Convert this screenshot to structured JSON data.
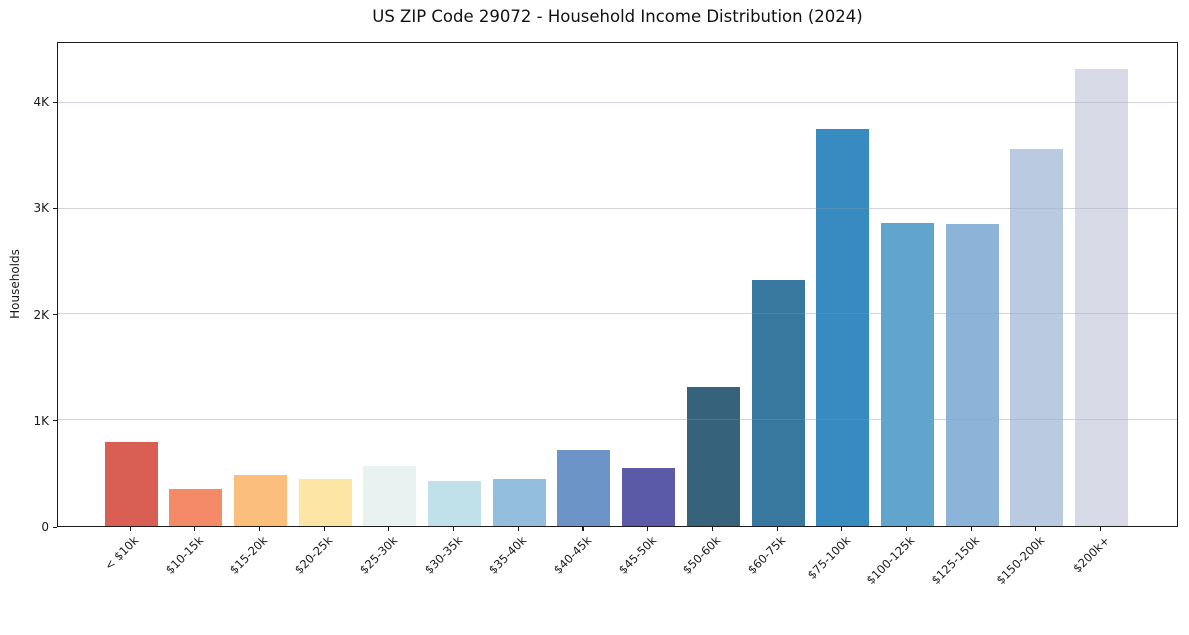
{
  "figure": {
    "title": "US ZIP Code 29072 - Household Income Distribution (2024)"
  },
  "chart_data": {
    "type": "bar",
    "title": "US ZIP Code 29072 - Household Income Distribution (2024)",
    "xlabel": "",
    "ylabel": "Households",
    "categories": [
      "< $10k",
      "$10-15k",
      "$15-20k",
      "$20-25k",
      "$25-30k",
      "$30-35k",
      "$35-40k",
      "$40-45k",
      "$45-50k",
      "$50-60k",
      "$60-75k",
      "$75-100k",
      "$100-125k",
      "$125-150k",
      "$150-200k",
      "$200k+"
    ],
    "values": [
      790,
      350,
      480,
      440,
      570,
      430,
      440,
      720,
      545,
      1310,
      2330,
      3750,
      2865,
      2855,
      3565,
      4325
    ],
    "bar_colors": [
      "#d95f55",
      "#f58a68",
      "#fcbe7d",
      "#fde5a5",
      "#e7f2f1",
      "#c0e0ea",
      "#94bedd",
      "#6c94c6",
      "#5a5aa8",
      "#36627b",
      "#38789f",
      "#378bc0",
      "#61a5cd",
      "#8cb4d8",
      "#b9cae1",
      "#d9dae8"
    ],
    "ylim": [
      0,
      4567
    ],
    "yticks": [
      {
        "value": 0,
        "label": "0"
      },
      {
        "value": 1000,
        "label": "1K"
      },
      {
        "value": 2000,
        "label": "2K"
      },
      {
        "value": 3000,
        "label": "3K"
      },
      {
        "value": 4000,
        "label": "4K"
      }
    ],
    "grid": true,
    "legend": false,
    "frame": "all-spines",
    "x_tick_rotation_deg": 45
  }
}
